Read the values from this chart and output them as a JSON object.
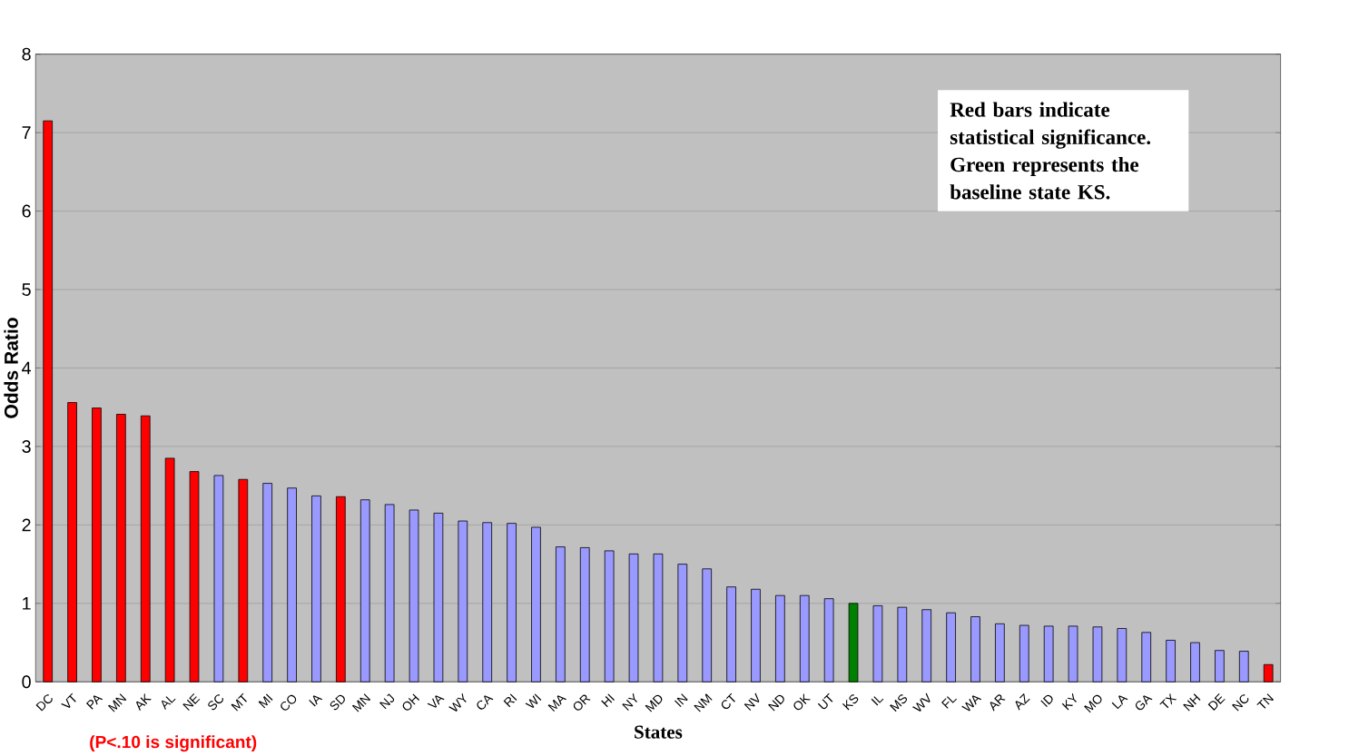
{
  "chart_data": {
    "type": "bar",
    "categories": [
      "DC",
      "VT",
      "PA",
      "MN",
      "AK",
      "AL",
      "NE",
      "SC",
      "MT",
      "MI",
      "CO",
      "IA",
      "SD",
      "MN",
      "NJ",
      "OH",
      "VA",
      "WY",
      "CA",
      "RI",
      "WI",
      "MA",
      "OR",
      "HI",
      "NY",
      "MD",
      "IN",
      "NM",
      "CT",
      "NV",
      "ND",
      "OK",
      "UT",
      "KS",
      "IL",
      "MS",
      "WV",
      "FL",
      "WA",
      "AR",
      "AZ",
      "ID",
      "KY",
      "MO",
      "LA",
      "GA",
      "TX",
      "NH",
      "DE",
      "NC",
      "TN"
    ],
    "values": [
      7.15,
      3.56,
      3.49,
      3.41,
      3.39,
      2.85,
      2.68,
      2.63,
      2.58,
      2.53,
      2.47,
      2.37,
      2.36,
      2.32,
      2.26,
      2.19,
      2.15,
      2.05,
      2.03,
      2.02,
      1.97,
      1.72,
      1.71,
      1.67,
      1.63,
      1.63,
      1.5,
      1.44,
      1.21,
      1.18,
      1.1,
      1.1,
      1.06,
      1.0,
      0.97,
      0.95,
      0.92,
      0.88,
      0.83,
      0.74,
      0.72,
      0.71,
      0.71,
      0.7,
      0.68,
      0.63,
      0.53,
      0.5,
      0.4,
      0.39,
      0.22
    ],
    "colors": [
      "#ff0000",
      "#ff0000",
      "#ff0000",
      "#ff0000",
      "#ff0000",
      "#ff0000",
      "#ff0000",
      "#9999ff",
      "#ff0000",
      "#9999ff",
      "#9999ff",
      "#9999ff",
      "#ff0000",
      "#9999ff",
      "#9999ff",
      "#9999ff",
      "#9999ff",
      "#9999ff",
      "#9999ff",
      "#9999ff",
      "#9999ff",
      "#9999ff",
      "#9999ff",
      "#9999ff",
      "#9999ff",
      "#9999ff",
      "#9999ff",
      "#9999ff",
      "#9999ff",
      "#9999ff",
      "#9999ff",
      "#9999ff",
      "#9999ff",
      "#008000",
      "#9999ff",
      "#9999ff",
      "#9999ff",
      "#9999ff",
      "#9999ff",
      "#9999ff",
      "#9999ff",
      "#9999ff",
      "#9999ff",
      "#9999ff",
      "#9999ff",
      "#9999ff",
      "#9999ff",
      "#9999ff",
      "#9999ff",
      "#9999ff",
      "#ff0000"
    ],
    "xlabel": "States",
    "ylabel": "Odds Ratio",
    "ylim": [
      0,
      8
    ],
    "yticks": [
      0,
      1,
      2,
      3,
      4,
      5,
      6,
      7,
      8
    ],
    "grid": "y",
    "annotations": [
      "Red bars indicate statistical significance. Green represents the baseline state KS.",
      "(P<.10 is significant)"
    ]
  }
}
